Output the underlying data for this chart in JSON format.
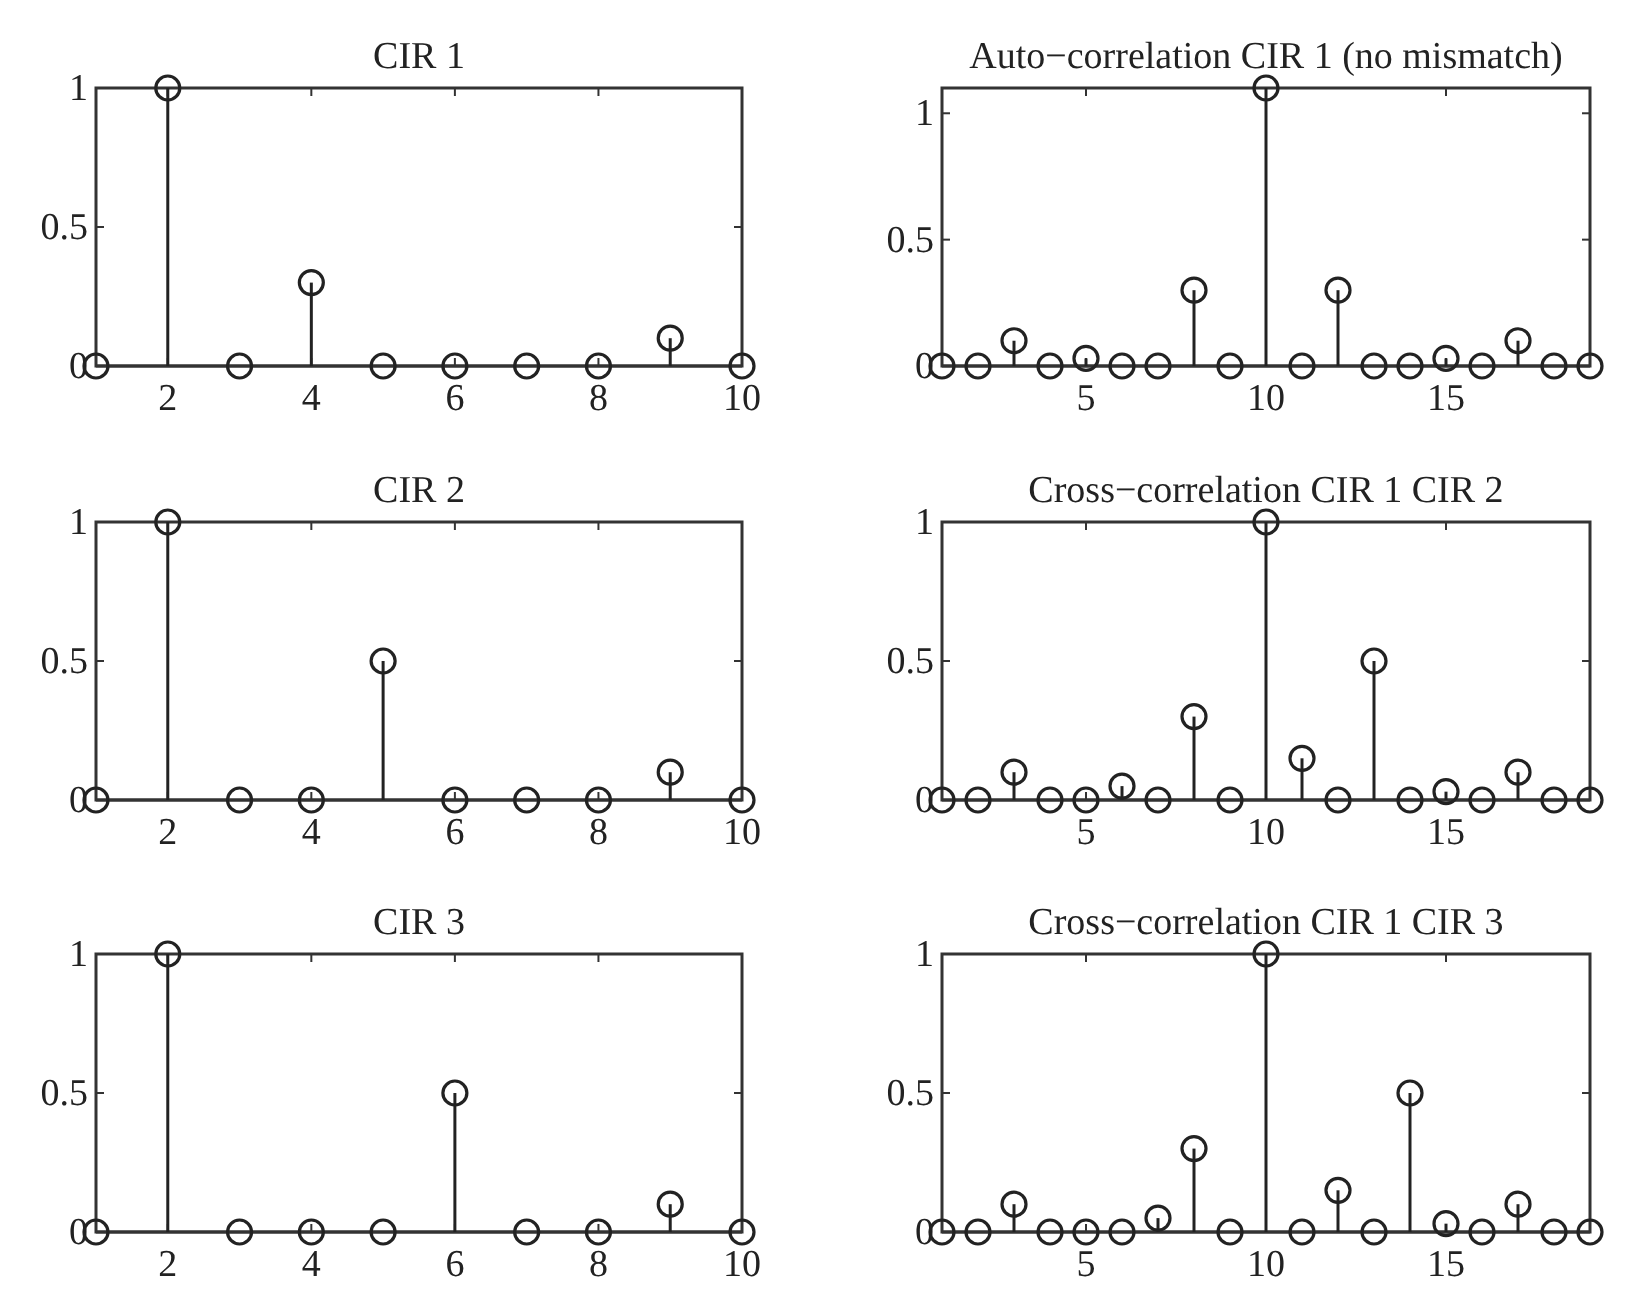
{
  "chart_data": [
    {
      "type": "lollipop",
      "title": "CIR 1",
      "x": [
        1,
        2,
        3,
        4,
        5,
        6,
        7,
        8,
        9,
        10
      ],
      "values": [
        0,
        1,
        0,
        0.3,
        0,
        0,
        0,
        0,
        0.1,
        0
      ],
      "color": "#222222",
      "marker": "circle",
      "xlim": [
        1,
        10
      ],
      "ylim": [
        0,
        1
      ],
      "xticks": [
        2,
        4,
        6,
        8,
        10
      ],
      "yticks": [
        0,
        0.5,
        1
      ]
    },
    {
      "type": "lollipop",
      "title": "Auto−correlation CIR 1 (no mismatch)",
      "x": [
        1,
        2,
        3,
        4,
        5,
        6,
        7,
        8,
        9,
        10,
        11,
        12,
        13,
        14,
        15,
        16,
        17,
        18,
        19
      ],
      "values": [
        0,
        0,
        0.1,
        0,
        0.03,
        0,
        0,
        0.3,
        0,
        1.1,
        0,
        0.3,
        0,
        0,
        0.03,
        0,
        0.1,
        0,
        0
      ],
      "color": "#222222",
      "marker": "circle",
      "xlim": [
        1,
        19
      ],
      "ylim": [
        0,
        1.1
      ],
      "xticks": [
        5,
        10,
        15
      ],
      "yticks": [
        0,
        0.5,
        1
      ]
    },
    {
      "type": "lollipop",
      "title": "CIR 2",
      "x": [
        1,
        2,
        3,
        4,
        5,
        6,
        7,
        8,
        9,
        10
      ],
      "values": [
        0,
        1,
        0,
        0,
        0.5,
        0,
        0,
        0,
        0.1,
        0
      ],
      "color": "#222222",
      "marker": "circle",
      "xlim": [
        1,
        10
      ],
      "ylim": [
        0,
        1
      ],
      "xticks": [
        2,
        4,
        6,
        8,
        10
      ],
      "yticks": [
        0,
        0.5,
        1
      ]
    },
    {
      "type": "lollipop",
      "title": "Cross−correlation CIR 1 CIR 2",
      "x": [
        1,
        2,
        3,
        4,
        5,
        6,
        7,
        8,
        9,
        10,
        11,
        12,
        13,
        14,
        15,
        16,
        17,
        18,
        19
      ],
      "values": [
        0,
        0,
        0.1,
        0,
        0,
        0.05,
        0,
        0.3,
        0,
        1,
        0.15,
        0,
        0.5,
        0,
        0.03,
        0,
        0.1,
        0,
        0
      ],
      "color": "#222222",
      "marker": "circle",
      "xlim": [
        1,
        19
      ],
      "ylim": [
        0,
        1
      ],
      "xticks": [
        5,
        10,
        15
      ],
      "yticks": [
        0,
        0.5,
        1
      ]
    },
    {
      "type": "lollipop",
      "title": "CIR 3",
      "x": [
        1,
        2,
        3,
        4,
        5,
        6,
        7,
        8,
        9,
        10
      ],
      "values": [
        0,
        1,
        0,
        0,
        0,
        0.5,
        0,
        0,
        0.1,
        0
      ],
      "color": "#222222",
      "marker": "circle",
      "xlim": [
        1,
        10
      ],
      "ylim": [
        0,
        1
      ],
      "xticks": [
        2,
        4,
        6,
        8,
        10
      ],
      "yticks": [
        0,
        0.5,
        1
      ]
    },
    {
      "type": "lollipop",
      "title": "Cross−correlation CIR 1 CIR 3",
      "x": [
        1,
        2,
        3,
        4,
        5,
        6,
        7,
        8,
        9,
        10,
        11,
        12,
        13,
        14,
        15,
        16,
        17,
        18,
        19
      ],
      "values": [
        0,
        0,
        0.1,
        0,
        0,
        0,
        0.05,
        0.3,
        0,
        1,
        0,
        0.15,
        0,
        0.5,
        0.03,
        0,
        0.1,
        0,
        0
      ],
      "color": "#222222",
      "marker": "circle",
      "xlim": [
        1,
        19
      ],
      "ylim": [
        0,
        1
      ],
      "xticks": [
        5,
        10,
        15
      ],
      "yticks": [
        0,
        0.5,
        1
      ]
    }
  ]
}
